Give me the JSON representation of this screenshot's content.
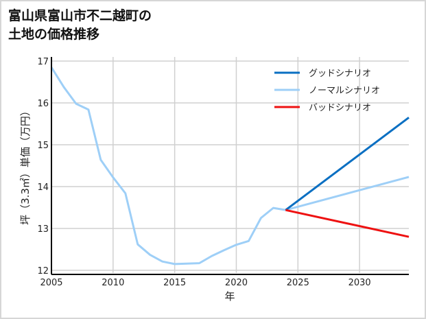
{
  "title_line1": "富山県富山市不二越町の",
  "title_line2": "土地の価格推移",
  "chart_data": {
    "type": "line",
    "title": "富山県富山市不二越町の土地の価格推移",
    "xlabel": "年",
    "ylabel": "坪（3.3㎡）単価（万円）",
    "xlim": [
      2005,
      2034
    ],
    "ylim": [
      12,
      17
    ],
    "xticks": [
      2005,
      2010,
      2015,
      2020,
      2025,
      2030
    ],
    "yticks": [
      12,
      13,
      14,
      15,
      16,
      17
    ],
    "grid": true,
    "legend_position": "upper right",
    "series": [
      {
        "name": "グッドシナリオ",
        "color": "#0a6fc2",
        "x": [
          2024,
          2034
        ],
        "y": [
          13.44,
          15.65
        ]
      },
      {
        "name": "ノーマルシナリオ",
        "color": "#9ecff7",
        "x": [
          2005,
          2006,
          2007,
          2008,
          2009,
          2010,
          2011,
          2012,
          2013,
          2014,
          2015,
          2016,
          2017,
          2018,
          2019,
          2020,
          2021,
          2022,
          2023,
          2024,
          2034
        ],
        "y": [
          16.85,
          16.38,
          15.98,
          15.84,
          14.64,
          14.22,
          13.84,
          12.62,
          12.37,
          12.21,
          12.15,
          12.16,
          12.17,
          12.34,
          12.48,
          12.61,
          12.7,
          13.25,
          13.49,
          13.44,
          14.23
        ]
      },
      {
        "name": "バッドシナリオ",
        "color": "#ee1111",
        "x": [
          2024,
          2034
        ],
        "y": [
          13.44,
          12.8
        ]
      }
    ]
  }
}
